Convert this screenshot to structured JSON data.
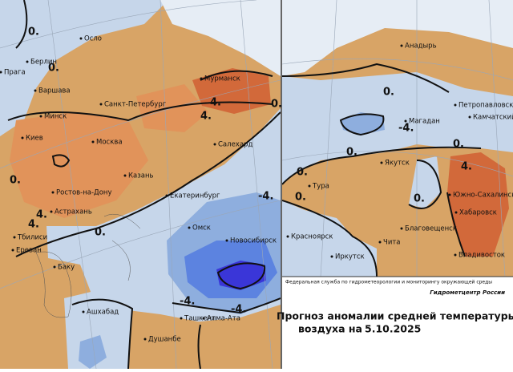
{
  "left_map": {
    "cities": [
      "Осло",
      "Берлин",
      "Прага",
      "Варшава",
      "Минск",
      "Санкт-Петербург",
      "Мурманск",
      "Киев",
      "Москва",
      "Салехард",
      "Казань",
      "Ростов-на-Дону",
      "Екатеринбург",
      "Астрахань",
      "Тбилиси",
      "Омск",
      "Новосибирск",
      "Ереван",
      "Баку",
      "Ашхабад",
      "Ташкент",
      "Алма-Ата",
      "Душанбе"
    ],
    "contour_labels": [
      "0.",
      "0.",
      "4.",
      "4.",
      "0.",
      "-4.",
      "4.",
      "4.",
      "0.",
      "-4.",
      "-4.",
      "0."
    ]
  },
  "right_map": {
    "cities": [
      "Анадырь",
      "Петропавловск",
      "Камчатский",
      "Магадан",
      "Якутск",
      "Тура",
      "Южно-Сахалинск",
      "Хабаровск",
      "Благовещенск",
      "Красноярск",
      "Чита",
      "Иркутск",
      "Владивосток"
    ],
    "contour_labels": [
      "0.",
      "-4.",
      "0.",
      "0.",
      "0.",
      "4.",
      "0.",
      "0."
    ]
  },
  "credits": {
    "agency": "Федеральная служба по гидрометеорологии и мониторингу окружающей среды",
    "center": "Гидрометцентр России"
  },
  "caption": {
    "title": "Прогноз аномалии средней температуры",
    "subtitle": "воздуха на",
    "date": "5.10.2025"
  }
}
